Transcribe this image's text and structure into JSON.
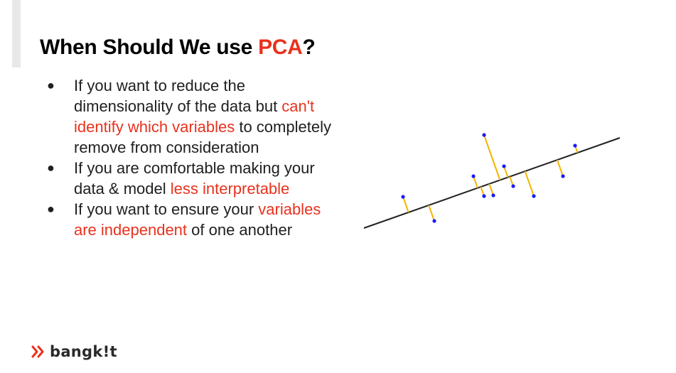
{
  "title": {
    "before": "When Should We use ",
    "highlight": "PCA",
    "after": "?"
  },
  "bullets": [
    {
      "before": "If you want to reduce the dimensionality of the data but ",
      "highlight": "can't identify which variables",
      "after": " to completely remove from consideration"
    },
    {
      "before": "If you are comfortable making your data & model ",
      "highlight": "less interpretable",
      "after": ""
    },
    {
      "before": "If you want to ensure your ",
      "highlight": "variables are independent",
      "after": " of one another"
    }
  ],
  "logo": {
    "text": "bangk!t"
  },
  "colors": {
    "highlight": "#e8321e",
    "points": "#1a1aff",
    "projections": "#f5b300",
    "axis": "#222222",
    "logo": "#e8321e"
  }
}
